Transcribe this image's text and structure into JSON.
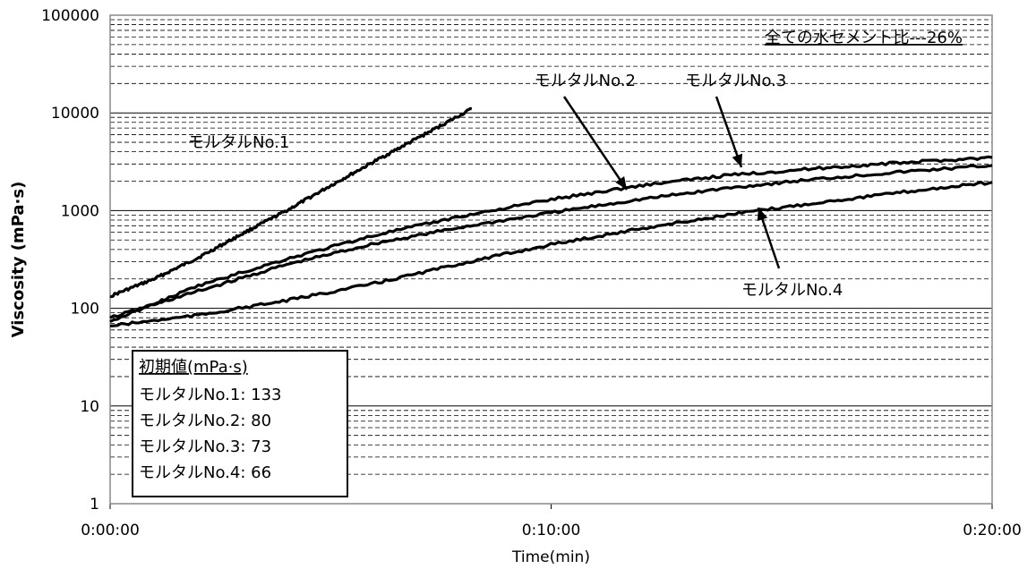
{
  "chart_data": {
    "type": "line",
    "title": "",
    "xlabel": "Time(min)",
    "ylabel": "Viscosity (mPa·s)",
    "yscale": "log",
    "ylim": [
      1,
      100000
    ],
    "xlim_minutes": [
      0,
      20
    ],
    "x_tick_labels": [
      "0:00:00",
      "0:10:00",
      "0:20:00"
    ],
    "y_tick_labels": [
      "1",
      "10",
      "100",
      "1000",
      "10000",
      "100000"
    ],
    "y_tick_values": [
      1,
      10,
      100,
      1000,
      10000,
      100000
    ],
    "grid": {
      "major_solid": true,
      "minor_dashed": true
    },
    "note": "全ての水セメント比---26%",
    "series": [
      {
        "name": "モルタルNo.1",
        "x_minutes": [
          0,
          1,
          2,
          3,
          4,
          5,
          6,
          7,
          8.2
        ],
        "values": [
          133,
          200,
          330,
          580,
          1000,
          1800,
          3200,
          5600,
          11000
        ]
      },
      {
        "name": "モルタルNo.2",
        "x_minutes": [
          0,
          2,
          4,
          6,
          8,
          10,
          12,
          14,
          16,
          18,
          20
        ],
        "values": [
          80,
          150,
          280,
          460,
          680,
          950,
          1300,
          1700,
          2100,
          2500,
          2900
        ]
      },
      {
        "name": "モルタルNo.3",
        "x_minutes": [
          0,
          2,
          4,
          6,
          8,
          10,
          12,
          14,
          16,
          18,
          20
        ],
        "values": [
          73,
          170,
          320,
          560,
          880,
          1300,
          1800,
          2300,
          2700,
          3100,
          3500
        ]
      },
      {
        "name": "モルタルNo.4",
        "x_minutes": [
          0,
          2,
          4,
          6,
          8,
          10,
          12,
          14,
          16,
          18,
          20
        ],
        "values": [
          66,
          85,
          120,
          180,
          290,
          450,
          650,
          900,
          1200,
          1550,
          1950
        ]
      }
    ],
    "series_labels": [
      {
        "text": "モルタルNo.1",
        "series": 0
      },
      {
        "text": "モルタルNo.2",
        "series": 1
      },
      {
        "text": "モルタルNo.3",
        "series": 2
      },
      {
        "text": "モルタルNo.4",
        "series": 3
      }
    ],
    "legend": {
      "position": "bottom-left",
      "title": "初期値(mPa·s)",
      "entries": [
        "モルタルNo.1: 133",
        "モルタルNo.2: 80",
        "モルタルNo.3: 73",
        "モルタルNo.4: 66"
      ]
    }
  }
}
